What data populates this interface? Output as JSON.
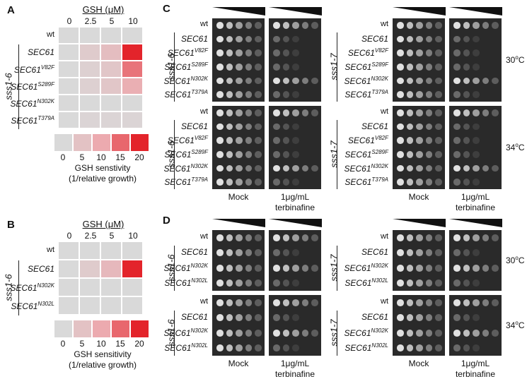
{
  "panels": {
    "A": {
      "letter": "A",
      "header": "GSH (μM)",
      "concentrations": [
        "0",
        "2.5",
        "5",
        "10"
      ],
      "strain": "sss1-6",
      "rows": [
        {
          "base": "wt",
          "sup": "",
          "values": [
            0,
            0,
            0,
            0
          ]
        },
        {
          "base": "SEC61",
          "sup": "",
          "values": [
            0,
            3,
            6,
            20
          ]
        },
        {
          "base": "SEC61",
          "sup": "V82F",
          "values": [
            0,
            2,
            4,
            14
          ]
        },
        {
          "base": "SEC61",
          "sup": "S289F",
          "values": [
            0,
            2,
            4,
            9
          ]
        },
        {
          "base": "SEC61",
          "sup": "N302K",
          "values": [
            0,
            0,
            0,
            0
          ]
        },
        {
          "base": "SEC61",
          "sup": "T379A",
          "values": [
            0,
            1,
            1,
            1
          ]
        }
      ],
      "scale_ticks": [
        "0",
        "5",
        "10",
        "15",
        "20"
      ],
      "scale_title": "GSH senstivity",
      "scale_subtitle": "(1/relative growth)"
    },
    "B": {
      "letter": "B",
      "header": "GSH (μM)",
      "concentrations": [
        "0",
        "2.5",
        "5",
        "10"
      ],
      "strain": "sss1-6",
      "rows": [
        {
          "base": "wt",
          "sup": "",
          "values": [
            0,
            0,
            0,
            0
          ]
        },
        {
          "base": "SEC61",
          "sup": "",
          "values": [
            0,
            3,
            7,
            20
          ]
        },
        {
          "base": "SEC61",
          "sup": "N302K",
          "values": [
            0,
            0,
            0,
            0
          ]
        },
        {
          "base": "SEC61",
          "sup": "N302L",
          "values": [
            0,
            0,
            0,
            0
          ]
        }
      ],
      "scale_ticks": [
        "0",
        "5",
        "10",
        "15",
        "20"
      ],
      "scale_title": "GSH sensitivity",
      "scale_subtitle": "(1/relative growth)"
    },
    "C": {
      "letter": "C",
      "left_strain": "sss1-6",
      "right_strain": "sss1-7",
      "rows": [
        {
          "base": "wt",
          "sup": ""
        },
        {
          "base": "SEC61",
          "sup": ""
        },
        {
          "base": "SEC61",
          "sup": "V82F"
        },
        {
          "base": "SEC61",
          "sup": "S289F"
        },
        {
          "base": "SEC61",
          "sup": "N302K"
        },
        {
          "base": "SEC61",
          "sup": "T379A"
        }
      ],
      "temps": [
        {
          "value": "30",
          "unit": "C"
        },
        {
          "value": "34",
          "unit": "C"
        }
      ],
      "cond_mock": "Mock",
      "cond_terb_1": "1μg/mL",
      "cond_terb_2": "terbinafine"
    },
    "D": {
      "letter": "D",
      "left_strain": "sss1-6",
      "right_strain": "sss1-7",
      "rows": [
        {
          "base": "wt",
          "sup": ""
        },
        {
          "base": "SEC61",
          "sup": ""
        },
        {
          "base": "SEC61",
          "sup": "N302K"
        },
        {
          "base": "SEC61",
          "sup": "N302L"
        }
      ],
      "temps": [
        {
          "value": "30",
          "unit": "C"
        },
        {
          "value": "34",
          "unit": "C"
        }
      ],
      "cond_mock": "Mock",
      "cond_terb_1": "1μg/mL",
      "cond_terb_2": "terbinafine"
    }
  },
  "colors": {
    "low": "#d9d9d9",
    "high": "#e3242b",
    "plate": "#2a2a2a"
  }
}
